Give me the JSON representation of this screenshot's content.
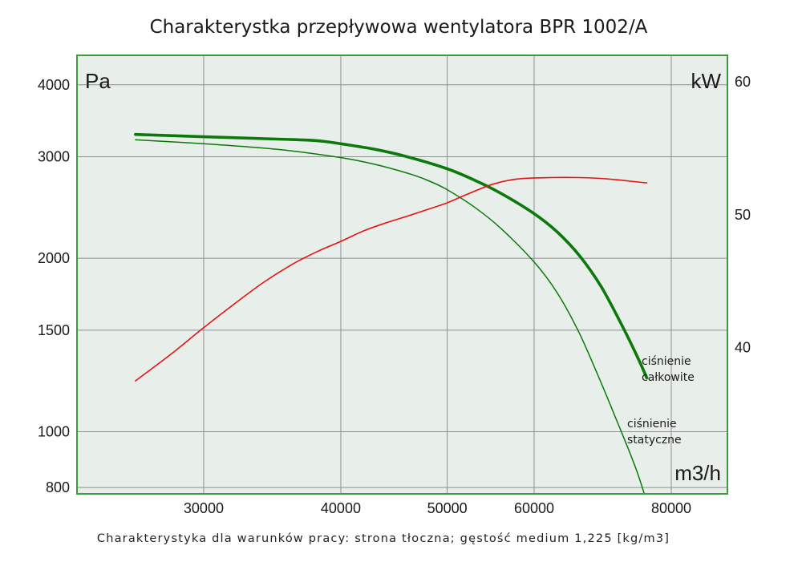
{
  "chart_data": {
    "type": "line",
    "title": "Charakterystka przepływowa wentylatora BPR 1002/A",
    "caption": "Charakterystyka dla warunków pracy: strona tłoczna; gęstość medium 1,225 [kg/m3]",
    "x_unit": "m3/h",
    "y_left_unit": "Pa",
    "y_right_unit": "kW",
    "x_ticks": [
      30000,
      40000,
      50000,
      60000,
      80000
    ],
    "x_tick_labels": [
      "30000",
      "40000",
      "50000",
      "60000",
      "80000"
    ],
    "y_left_ticks": [
      800,
      1000,
      1500,
      2000,
      3000,
      4000
    ],
    "y_left_tick_labels": [
      "800",
      "1000",
      "1500",
      "2000",
      "3000",
      "4000"
    ],
    "y_right_ticks": [
      40,
      50,
      60
    ],
    "y_right_tick_labels": [
      "40",
      "50",
      "60"
    ],
    "x_scale": "log",
    "y_left_scale": "log",
    "xlim": [
      23000,
      90000
    ],
    "ylim_left": [
      780,
      4500
    ],
    "ylim_right": [
      29,
      62
    ],
    "grid": true,
    "colors": {
      "plot_background": "#e8eee9",
      "frame": "#3d9a3d",
      "grid": "#8f8f8f",
      "total_pressure": "#0b7a0b",
      "static_pressure": "#0b7a0b",
      "power": "#e31414"
    },
    "series": [
      {
        "name": "ciśnienie całkowite",
        "axis": "left",
        "label_lines": [
          "ciśnienie",
          "całkowite"
        ],
        "x": [
          26000,
          30000,
          35000,
          38000,
          40000,
          43000,
          46000,
          50000,
          53000,
          56000,
          60000,
          63000,
          66000,
          69000,
          72000,
          74500,
          76000
        ],
        "values": [
          3280,
          3250,
          3220,
          3200,
          3160,
          3090,
          3000,
          2860,
          2730,
          2590,
          2390,
          2220,
          2020,
          1790,
          1540,
          1350,
          1240
        ]
      },
      {
        "name": "ciśnienie statyczne",
        "axis": "left",
        "label_lines": [
          "ciśnienie",
          "statyczne"
        ],
        "x": [
          26000,
          30000,
          35000,
          40000,
          43000,
          46000,
          48000,
          50000,
          53000,
          56000,
          60000,
          63000,
          66000,
          69000,
          71000,
          73000,
          74500,
          75600
        ],
        "values": [
          3210,
          3160,
          3090,
          2990,
          2910,
          2810,
          2730,
          2630,
          2450,
          2250,
          1970,
          1740,
          1480,
          1220,
          1070,
          940,
          850,
          780
        ]
      },
      {
        "name": "moc",
        "axis": "right",
        "x": [
          26000,
          28000,
          30000,
          32000,
          34000,
          36000,
          38000,
          40000,
          42000,
          44000,
          46000,
          48000,
          50000,
          52000,
          55000,
          58000,
          62000,
          66000,
          70000,
          74000,
          76000
        ],
        "values": [
          37.5,
          39.5,
          41.5,
          43.3,
          44.9,
          46.2,
          47.2,
          48.0,
          48.8,
          49.4,
          49.9,
          50.4,
          50.9,
          51.5,
          52.3,
          52.7,
          52.8,
          52.8,
          52.7,
          52.5,
          52.4
        ]
      }
    ]
  }
}
